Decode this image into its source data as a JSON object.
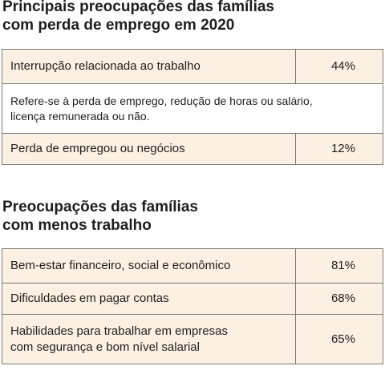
{
  "section1": {
    "title_lines": [
      "Principais preocupações das famílias",
      "com perda de emprego em 2020"
    ],
    "rows": [
      {
        "label": "Interrupção relacionada ao trabalho",
        "value": "44%"
      },
      {
        "note_lines": [
          "Refere-se à perda de emprego, redução de horas ou salário,",
          "licença remunerada ou não."
        ]
      },
      {
        "label": "Perda de empregou ou negócios",
        "value": "12%"
      }
    ]
  },
  "section2": {
    "title_lines": [
      "Preocupações das famílias",
      "com menos trabalho"
    ],
    "rows": [
      {
        "label": "Bem-estar financeiro, social e econômico",
        "value": "81%"
      },
      {
        "label": "Dificuldades em pagar contas",
        "value": "68%"
      },
      {
        "label_lines": [
          "Habilidades para trabalhar em empresas",
          "com segurança e bom nível salarial"
        ],
        "value": "65%"
      }
    ]
  },
  "colors": {
    "row_background": "#fbf0e1",
    "border": "#7a7a7a",
    "text": "#1e1e1e"
  }
}
